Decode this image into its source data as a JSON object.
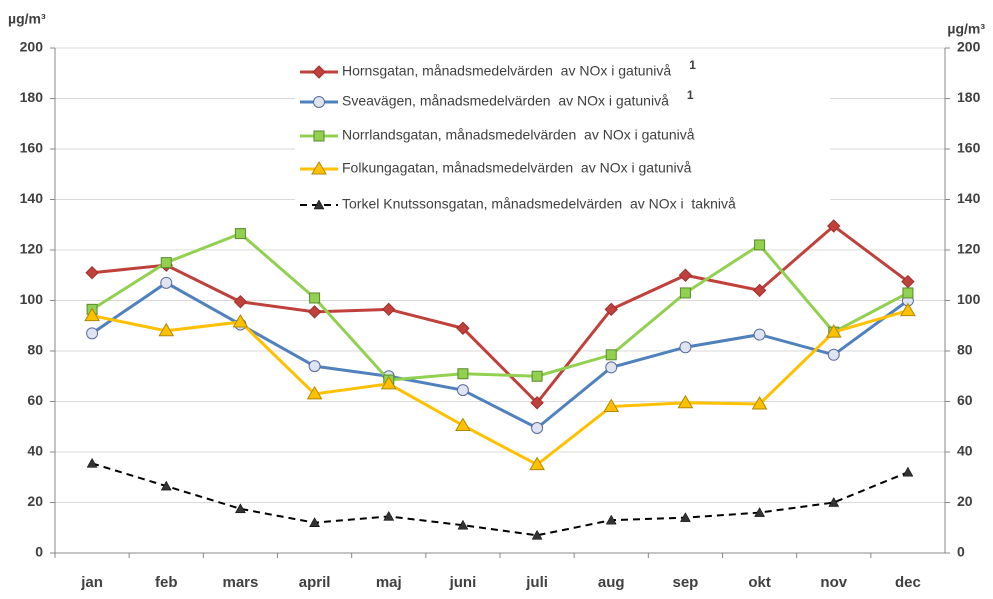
{
  "chart_data": {
    "type": "line",
    "y_label": "µg/m³",
    "y2_label": "µg/m³",
    "categories": [
      "jan",
      "feb",
      "mars",
      "april",
      "maj",
      "juni",
      "juli",
      "aug",
      "sep",
      "okt",
      "nov",
      "dec"
    ],
    "series": [
      {
        "name": "Hornsgatan, månadsmedelvärden  av NOx i gatunivå",
        "color": "#c0403c",
        "marker": "diamond",
        "footnote": "1",
        "values": [
          111,
          114,
          99.5,
          95.5,
          96.5,
          89,
          59.5,
          96.5,
          110,
          104,
          129.5,
          107.5
        ]
      },
      {
        "name": "Sveavägen, månadsmedelvärden  av NOx i gatunivå",
        "color": "#4f81bd",
        "marker": "circle",
        "footnote": "1",
        "values": [
          87,
          107,
          90.5,
          74,
          70,
          64.5,
          49.5,
          73.5,
          81.5,
          86.5,
          78.5,
          100
        ]
      },
      {
        "name": "Norrlandsgatan, månadsmedelvärden  av NOx i gatunivå",
        "color": "#92d050",
        "marker": "square",
        "values": [
          96.5,
          115,
          126.5,
          101,
          68.5,
          71,
          70,
          78.5,
          103,
          122,
          87.5,
          103
        ]
      },
      {
        "name": "Folkungagatan, månadsmedelvärden  av NOx i gatunivå",
        "color": "#ffc000",
        "marker": "triangle",
        "values": [
          94,
          88,
          91.5,
          63,
          67,
          50.5,
          35,
          58,
          59.5,
          59,
          87.5,
          96
        ]
      },
      {
        "name": "Torkel Knutssonsgatan, månadsmedelvärden  av NOx i  taknivå",
        "color": "#000000",
        "marker": "small-triangle",
        "dashed": true,
        "values": [
          35.5,
          26.5,
          17.5,
          12,
          14.5,
          11,
          7,
          13,
          14,
          16,
          20,
          32
        ]
      }
    ],
    "ylim": [
      0,
      200
    ],
    "yticks": [
      0,
      20,
      40,
      60,
      80,
      100,
      120,
      140,
      160,
      180,
      200
    ],
    "y2lim": [
      0,
      200
    ],
    "y2ticks": [
      0,
      20,
      40,
      60,
      80,
      100,
      120,
      140,
      160,
      180,
      200
    ],
    "grid": true
  }
}
